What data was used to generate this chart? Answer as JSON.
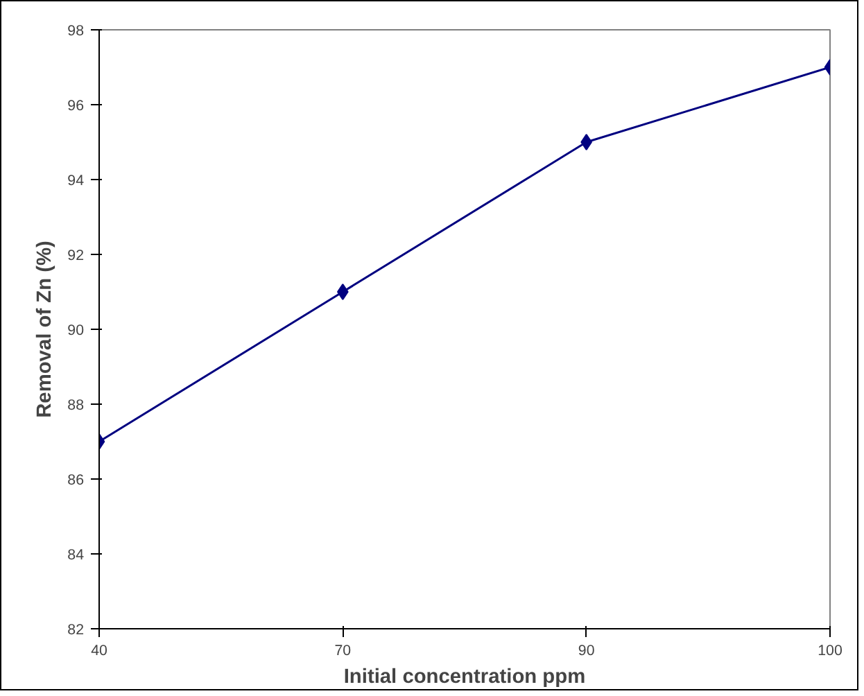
{
  "chart_data": {
    "type": "line",
    "xlabel": "Initial concentration ppm",
    "ylabel": "Removal of Zn (%)",
    "categories": [
      "40",
      "70",
      "90",
      "100"
    ],
    "series": [
      {
        "color": "#000080",
        "values": [
          87,
          91,
          95,
          97
        ]
      }
    ],
    "ylim": [
      82,
      98
    ],
    "yticks": [
      82,
      84,
      86,
      88,
      90,
      92,
      94,
      96,
      98
    ],
    "grid": false,
    "marker": "diamond",
    "line_style": "solid"
  }
}
